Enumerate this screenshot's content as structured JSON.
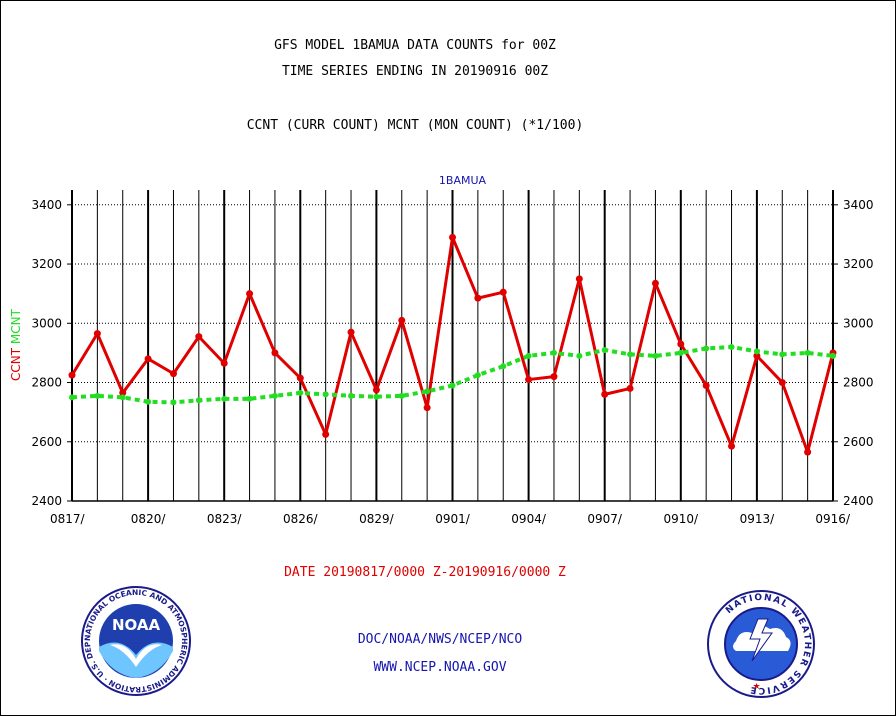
{
  "header": {
    "title_line1": "GFS MODEL 1BAMUA DATA COUNTS for 00Z",
    "title_line2": "TIME SERIES ENDING IN 20190916 00Z",
    "subtitle": "CCNT (CURR COUNT) MCNT (MON COUNT) (*1/100)"
  },
  "footer": {
    "date_range": "DATE 20190817/0000 Z-20190916/0000 Z",
    "credit_line1": "DOC/NOAA/NWS/NCEP/NCO",
    "credit_line2": "WWW.NCEP.NOAA.GOV"
  },
  "logos": {
    "noaa_label": "NOAA",
    "noaa_ring_text": "NATIONAL OCEANIC AND ATMOSPHERIC ADMINISTRATION · U.S. DEPARTMENT OF COMMERCE ·",
    "nws_ring_text": "NATIONAL WEATHER SERVICE"
  },
  "colors": {
    "ccnt": "#e00000",
    "mcnt": "#22dd22",
    "panel_label": "#1515b0"
  },
  "chart_data": {
    "type": "line",
    "panel_title": "1BAMUA",
    "ylabel_series": [
      {
        "text": "CCNT",
        "color": "#e00000"
      },
      {
        "text": "MCNT",
        "color": "#22dd22"
      }
    ],
    "ylim": [
      2400,
      3450
    ],
    "yticks": [
      2400,
      2600,
      2800,
      3000,
      3200,
      3400
    ],
    "xlim": [
      0,
      30
    ],
    "xticks": [
      {
        "x": 0,
        "label": "0817/"
      },
      {
        "x": 3,
        "label": "0820/"
      },
      {
        "x": 6,
        "label": "0823/"
      },
      {
        "x": 9,
        "label": "0826/"
      },
      {
        "x": 12,
        "label": "0829/"
      },
      {
        "x": 15,
        "label": "0901/"
      },
      {
        "x": 18,
        "label": "0904/"
      },
      {
        "x": 21,
        "label": "0907/"
      },
      {
        "x": 24,
        "label": "0910/"
      },
      {
        "x": 27,
        "label": "0913/"
      },
      {
        "x": 30,
        "label": "0916/"
      }
    ],
    "grid": true,
    "series": [
      {
        "name": "CCNT",
        "style": "solid",
        "color": "#e00000",
        "values": [
          2825,
          2965,
          2765,
          2880,
          2830,
          2955,
          2865,
          3100,
          2900,
          2815,
          2625,
          2970,
          2775,
          3010,
          2715,
          3290,
          3085,
          3105,
          2810,
          2820,
          3150,
          2760,
          2780,
          3135,
          2930,
          2790,
          2585,
          2890,
          2800,
          2565,
          2900
        ]
      },
      {
        "name": "MCNT",
        "style": "dashed",
        "color": "#22dd22",
        "values": [
          2750,
          2755,
          2750,
          2735,
          2733,
          2740,
          2745,
          2745,
          2755,
          2765,
          2760,
          2755,
          2752,
          2755,
          2770,
          2790,
          2825,
          2855,
          2890,
          2900,
          2890,
          2910,
          2895,
          2890,
          2900,
          2915,
          2920,
          2905,
          2895,
          2900,
          2890
        ]
      }
    ]
  }
}
